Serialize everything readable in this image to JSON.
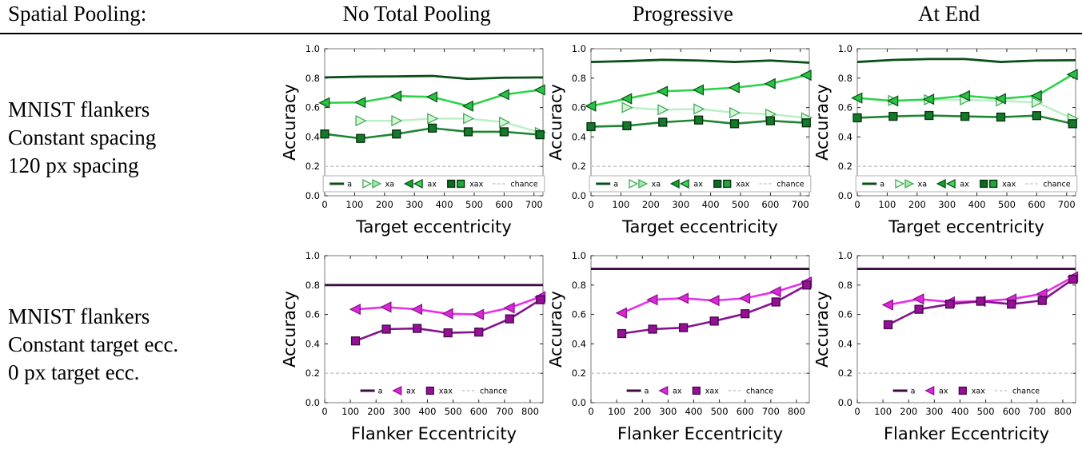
{
  "header": {
    "row_label_title": "Spatial Pooling:",
    "columns": [
      "No Total Pooling",
      "Progressive",
      "At End"
    ]
  },
  "rows": [
    {
      "label_lines": [
        "MNIST flankers",
        "Constant spacing",
        "120 px spacing"
      ]
    },
    {
      "label_lines": [
        "MNIST flankers",
        "Constant target ecc.",
        "0 px target ecc."
      ]
    }
  ],
  "colors": {
    "green_dark": "#0a4f16",
    "green_bright": "#2fd24b",
    "green_pale": "#b9efc4",
    "green_forest": "#1d8534",
    "purple_dark": "#3c0b42",
    "magenta": "#e92fe9",
    "purple_mid": "#86108f",
    "chance_gray": "#cccccc",
    "axis_box": "#7a7a7a"
  },
  "chart_data": [
    {
      "type": "line",
      "pooling": "No Total Pooling",
      "condition": "Constant spacing 120 px",
      "xlabel": "Target eccentricity",
      "ylabel": "Accuracy",
      "xlim": [
        0,
        730
      ],
      "ylim": [
        0,
        1
      ],
      "xticks": [
        0,
        100,
        200,
        300,
        400,
        500,
        600,
        700
      ],
      "yticks": [
        0,
        0.2,
        0.4,
        0.6,
        0.8,
        1.0
      ],
      "legend_frame": true,
      "legend_double": true,
      "legend_position": "bottom-center",
      "series": [
        {
          "name": "a",
          "line": "#0a4f16",
          "lw": 2.8,
          "x": [
            0,
            120,
            240,
            360,
            480,
            600,
            730
          ],
          "y": [
            0.805,
            0.81,
            0.812,
            0.815,
            0.795,
            0.803,
            0.805
          ]
        },
        {
          "name": "xa",
          "marker": "tri-right",
          "line": "#b9efc4",
          "fill": "#d4f6d8",
          "edge": "#46ab58",
          "legend_fills": [
            "#f2fcf2",
            "#9fe9b1"
          ],
          "lw": 2.4,
          "x": [
            120,
            240,
            360,
            480,
            600,
            720
          ],
          "y": [
            0.51,
            0.51,
            0.525,
            0.525,
            0.5,
            0.43
          ]
        },
        {
          "name": "ax",
          "marker": "tri-left",
          "line": "#2fd24b",
          "fill": "#29c244",
          "edge": "#0b5618",
          "legend_fills": [
            "#12a22e",
            "#3cd857"
          ],
          "lw": 2.6,
          "x": [
            0,
            120,
            240,
            360,
            480,
            600,
            720
          ],
          "y": [
            0.632,
            0.635,
            0.678,
            0.672,
            0.61,
            0.688,
            0.72
          ]
        },
        {
          "name": "xax",
          "marker": "square",
          "line": "#1d8534",
          "fill": "#15792a",
          "edge": "#053310",
          "legend_fills": [
            "#0e6a20",
            "#22a73e"
          ],
          "lw": 2.6,
          "x": [
            0,
            120,
            240,
            360,
            480,
            600,
            720
          ],
          "y": [
            0.42,
            0.39,
            0.42,
            0.46,
            0.435,
            0.435,
            0.415
          ]
        },
        {
          "name": "chance",
          "line": "#cccccc",
          "lw": 1.7,
          "dash": "4,3",
          "x": [
            0,
            730
          ],
          "y": [
            0.2,
            0.2
          ]
        }
      ]
    },
    {
      "type": "line",
      "pooling": "Progressive",
      "condition": "Constant spacing 120 px",
      "xlabel": "Target eccentricity",
      "ylabel": "Accuracy",
      "xlim": [
        0,
        730
      ],
      "ylim": [
        0,
        1
      ],
      "xticks": [
        0,
        100,
        200,
        300,
        400,
        500,
        600,
        700
      ],
      "yticks": [
        0,
        0.2,
        0.4,
        0.6,
        0.8,
        1.0
      ],
      "legend_frame": true,
      "legend_double": true,
      "legend_position": "bottom-center",
      "series": [
        {
          "name": "a",
          "line": "#0a4f16",
          "lw": 2.8,
          "x": [
            0,
            120,
            240,
            360,
            480,
            600,
            730
          ],
          "y": [
            0.91,
            0.916,
            0.925,
            0.92,
            0.91,
            0.92,
            0.905
          ]
        },
        {
          "name": "xa",
          "marker": "tri-right",
          "line": "#b9efc4",
          "fill": "#d4f6d8",
          "edge": "#46ab58",
          "legend_fills": [
            "#f2fcf2",
            "#9fe9b1"
          ],
          "lw": 2.4,
          "x": [
            120,
            240,
            360,
            480,
            600,
            720
          ],
          "y": [
            0.6,
            0.585,
            0.59,
            0.565,
            0.555,
            0.53
          ]
        },
        {
          "name": "ax",
          "marker": "tri-left",
          "line": "#2fd24b",
          "fill": "#29c244",
          "edge": "#0b5618",
          "legend_fills": [
            "#12a22e",
            "#3cd857"
          ],
          "lw": 2.6,
          "x": [
            0,
            120,
            240,
            360,
            480,
            600,
            720
          ],
          "y": [
            0.61,
            0.66,
            0.71,
            0.72,
            0.735,
            0.762,
            0.82
          ]
        },
        {
          "name": "xax",
          "marker": "square",
          "line": "#1d8534",
          "fill": "#15792a",
          "edge": "#053310",
          "legend_fills": [
            "#0e6a20",
            "#22a73e"
          ],
          "lw": 2.6,
          "x": [
            0,
            120,
            240,
            360,
            480,
            600,
            720
          ],
          "y": [
            0.47,
            0.476,
            0.5,
            0.515,
            0.49,
            0.51,
            0.496
          ]
        },
        {
          "name": "chance",
          "line": "#cccccc",
          "lw": 1.7,
          "dash": "4,3",
          "x": [
            0,
            730
          ],
          "y": [
            0.2,
            0.2
          ]
        }
      ]
    },
    {
      "type": "line",
      "pooling": "At End",
      "condition": "Constant spacing 120 px",
      "xlabel": "Target eccentricity",
      "ylabel": "Accuracy",
      "xlim": [
        0,
        730
      ],
      "ylim": [
        0,
        1
      ],
      "xticks": [
        0,
        100,
        200,
        300,
        400,
        500,
        600,
        700
      ],
      "yticks": [
        0,
        0.2,
        0.4,
        0.6,
        0.8,
        1.0
      ],
      "legend_frame": true,
      "legend_double": true,
      "legend_position": "bottom-center",
      "series": [
        {
          "name": "a",
          "line": "#0a4f16",
          "lw": 2.8,
          "x": [
            0,
            120,
            240,
            360,
            480,
            600,
            730
          ],
          "y": [
            0.91,
            0.924,
            0.93,
            0.93,
            0.91,
            0.92,
            0.922
          ]
        },
        {
          "name": "xa",
          "marker": "tri-right",
          "line": "#b9efc4",
          "fill": "#d4f6d8",
          "edge": "#46ab58",
          "legend_fills": [
            "#f2fcf2",
            "#9fe9b1"
          ],
          "lw": 2.4,
          "x": [
            120,
            240,
            360,
            480,
            600,
            720
          ],
          "y": [
            0.648,
            0.653,
            0.652,
            0.645,
            0.635,
            0.525
          ]
        },
        {
          "name": "ax",
          "marker": "tri-left",
          "line": "#2fd24b",
          "fill": "#29c244",
          "edge": "#0b5618",
          "legend_fills": [
            "#12a22e",
            "#3cd857"
          ],
          "lw": 2.6,
          "x": [
            0,
            120,
            240,
            360,
            480,
            600,
            720
          ],
          "y": [
            0.665,
            0.645,
            0.656,
            0.68,
            0.66,
            0.68,
            0.825
          ]
        },
        {
          "name": "xax",
          "marker": "square",
          "line": "#1d8534",
          "fill": "#15792a",
          "edge": "#053310",
          "legend_fills": [
            "#0e6a20",
            "#22a73e"
          ],
          "lw": 2.6,
          "x": [
            0,
            120,
            240,
            360,
            480,
            600,
            720
          ],
          "y": [
            0.53,
            0.54,
            0.546,
            0.54,
            0.535,
            0.545,
            0.49
          ]
        },
        {
          "name": "chance",
          "line": "#cccccc",
          "lw": 1.7,
          "dash": "4,3",
          "x": [
            0,
            730
          ],
          "y": [
            0.2,
            0.2
          ]
        }
      ]
    },
    {
      "type": "line",
      "pooling": "No Total Pooling",
      "condition": "Constant target ecc. 0 px",
      "xlabel": "Flanker Eccentricity",
      "ylabel": "Accuracy",
      "xlim": [
        0,
        850
      ],
      "ylim": [
        0,
        1
      ],
      "xticks": [
        0,
        100,
        200,
        300,
        400,
        500,
        600,
        700,
        800
      ],
      "yticks": [
        0,
        0.2,
        0.4,
        0.6,
        0.8,
        1.0
      ],
      "legend_frame": false,
      "legend_double": false,
      "legend_position": "bottom-center",
      "series": [
        {
          "name": "a",
          "line": "#3c0b42",
          "lw": 2.8,
          "x": [
            0,
            850
          ],
          "y": [
            0.8,
            0.8
          ]
        },
        {
          "name": "ax",
          "marker": "tri-left",
          "line": "#e92fe9",
          "fill": "#da28da",
          "edge": "#8c128c",
          "lw": 2.6,
          "x": [
            120,
            240,
            360,
            480,
            600,
            720,
            840
          ],
          "y": [
            0.635,
            0.65,
            0.635,
            0.605,
            0.6,
            0.645,
            0.72
          ]
        },
        {
          "name": "xax",
          "marker": "square",
          "line": "#86108f",
          "fill": "#970f97",
          "edge": "#470b4d",
          "lw": 2.6,
          "x": [
            120,
            240,
            360,
            480,
            600,
            720,
            840
          ],
          "y": [
            0.42,
            0.5,
            0.505,
            0.475,
            0.48,
            0.57,
            0.7
          ]
        },
        {
          "name": "chance",
          "line": "#cccccc",
          "lw": 1.7,
          "dash": "4,3",
          "x": [
            0,
            850
          ],
          "y": [
            0.2,
            0.2
          ]
        }
      ]
    },
    {
      "type": "line",
      "pooling": "Progressive",
      "condition": "Constant target ecc. 0 px",
      "xlabel": "Flanker Eccentricity",
      "ylabel": "Accuracy",
      "xlim": [
        0,
        850
      ],
      "ylim": [
        0,
        1
      ],
      "xticks": [
        0,
        100,
        200,
        300,
        400,
        500,
        600,
        700,
        800
      ],
      "yticks": [
        0,
        0.2,
        0.4,
        0.6,
        0.8,
        1.0
      ],
      "legend_frame": false,
      "legend_double": false,
      "legend_position": "bottom-center",
      "series": [
        {
          "name": "a",
          "line": "#3c0b42",
          "lw": 2.8,
          "x": [
            0,
            850
          ],
          "y": [
            0.91,
            0.91
          ]
        },
        {
          "name": "ax",
          "marker": "tri-left",
          "line": "#e92fe9",
          "fill": "#da28da",
          "edge": "#8c128c",
          "lw": 2.6,
          "x": [
            120,
            240,
            360,
            480,
            600,
            720,
            840
          ],
          "y": [
            0.61,
            0.7,
            0.71,
            0.695,
            0.71,
            0.755,
            0.82
          ]
        },
        {
          "name": "xax",
          "marker": "square",
          "line": "#86108f",
          "fill": "#970f97",
          "edge": "#470b4d",
          "lw": 2.6,
          "x": [
            120,
            240,
            360,
            480,
            600,
            720,
            840
          ],
          "y": [
            0.47,
            0.5,
            0.51,
            0.555,
            0.605,
            0.685,
            0.8
          ]
        },
        {
          "name": "chance",
          "line": "#cccccc",
          "lw": 1.7,
          "dash": "4,3",
          "x": [
            0,
            850
          ],
          "y": [
            0.2,
            0.2
          ]
        }
      ]
    },
    {
      "type": "line",
      "pooling": "At End",
      "condition": "Constant target ecc. 0 px",
      "xlabel": "Flanker Eccentricity",
      "ylabel": "Accuracy",
      "xlim": [
        0,
        850
      ],
      "ylim": [
        0,
        1
      ],
      "xticks": [
        0,
        100,
        200,
        300,
        400,
        500,
        600,
        700,
        800
      ],
      "yticks": [
        0,
        0.2,
        0.4,
        0.6,
        0.8,
        1.0
      ],
      "legend_frame": false,
      "legend_double": false,
      "legend_position": "bottom-center",
      "series": [
        {
          "name": "a",
          "line": "#3c0b42",
          "lw": 2.8,
          "x": [
            0,
            850
          ],
          "y": [
            0.91,
            0.91
          ]
        },
        {
          "name": "ax",
          "marker": "tri-left",
          "line": "#e92fe9",
          "fill": "#da28da",
          "edge": "#8c128c",
          "lw": 2.6,
          "x": [
            120,
            240,
            360,
            480,
            600,
            720,
            840
          ],
          "y": [
            0.665,
            0.705,
            0.685,
            0.69,
            0.705,
            0.74,
            0.855
          ]
        },
        {
          "name": "xax",
          "marker": "square",
          "line": "#86108f",
          "fill": "#970f97",
          "edge": "#470b4d",
          "lw": 2.6,
          "x": [
            120,
            240,
            360,
            480,
            600,
            720,
            840
          ],
          "y": [
            0.53,
            0.635,
            0.67,
            0.69,
            0.67,
            0.695,
            0.84
          ]
        },
        {
          "name": "chance",
          "line": "#cccccc",
          "lw": 1.7,
          "dash": "4,3",
          "x": [
            0,
            850
          ],
          "y": [
            0.2,
            0.2
          ]
        }
      ]
    }
  ]
}
